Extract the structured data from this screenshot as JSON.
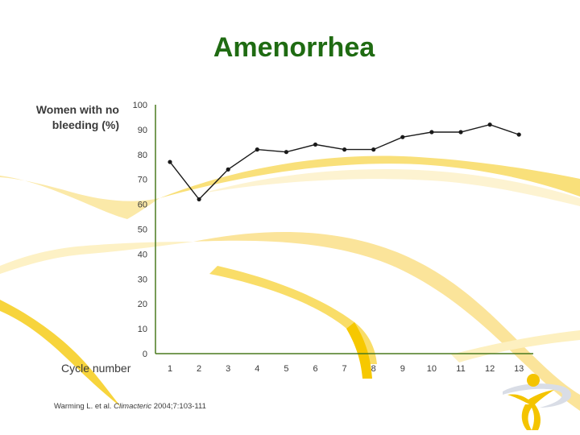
{
  "slide": {
    "title": "Amenorrhea",
    "citation_prefix": "Warming L. et al. ",
    "citation_journal": "Climacteric",
    "citation_suffix": " 2004;7:103-111"
  },
  "colors": {
    "title": "#1f6b12",
    "axis": "#4a7a1e",
    "series": "#1a1a1a",
    "accent": "#f5c400"
  },
  "chart_data": {
    "type": "line",
    "title": "",
    "xlabel": "Cycle number",
    "ylabel": "Women with no bleeding (%)",
    "ylim": [
      0,
      100
    ],
    "yticks": [
      0,
      10,
      20,
      30,
      40,
      50,
      60,
      70,
      80,
      90,
      100
    ],
    "x": [
      1,
      2,
      3,
      4,
      5,
      6,
      7,
      8,
      9,
      10,
      11,
      12,
      13
    ],
    "series": [
      {
        "values": [
          77,
          62,
          74,
          82,
          81,
          84,
          82,
          82,
          87,
          89,
          89,
          92,
          88
        ]
      }
    ],
    "grid": false,
    "legend": "none"
  }
}
